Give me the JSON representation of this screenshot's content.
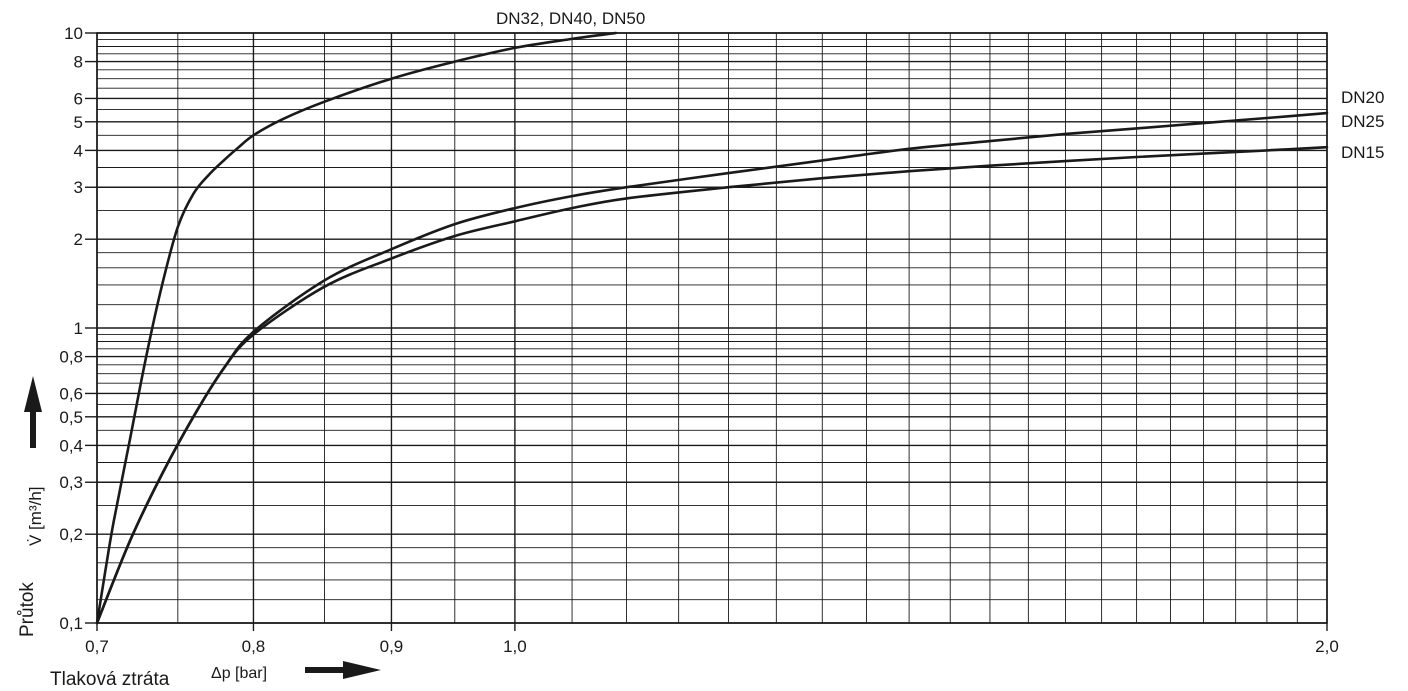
{
  "chart_data": {
    "type": "line",
    "title": "",
    "xlabel": "Tlaková ztráta",
    "xlabel_symbol": "Δp [bar]",
    "ylabel": "Průtok",
    "ylabel_symbol": "V̇ [m³/h]",
    "x_scale": "log",
    "y_scale": "log",
    "xlim": [
      0.7,
      2.0
    ],
    "ylim": [
      0.1,
      10
    ],
    "grid": true,
    "x_ticks": [
      {
        "value": 0.7,
        "label": "0,7"
      },
      {
        "value": 0.8,
        "label": "0,8"
      },
      {
        "value": 0.9,
        "label": "0,9"
      },
      {
        "value": 1.0,
        "label": "1,0"
      },
      {
        "value": 2.0,
        "label": "2,0"
      }
    ],
    "y_ticks": [
      {
        "value": 0.1,
        "label": "0,1"
      },
      {
        "value": 0.2,
        "label": "0,2"
      },
      {
        "value": 0.3,
        "label": "0,3"
      },
      {
        "value": 0.4,
        "label": "0,4"
      },
      {
        "value": 0.5,
        "label": "0,5"
      },
      {
        "value": 0.6,
        "label": "0,6"
      },
      {
        "value": 0.8,
        "label": "0,8"
      },
      {
        "value": 1,
        "label": "1"
      },
      {
        "value": 2,
        "label": "2"
      },
      {
        "value": 3,
        "label": "3"
      },
      {
        "value": 4,
        "label": "4"
      },
      {
        "value": 5,
        "label": "5"
      },
      {
        "value": 6,
        "label": "6"
      },
      {
        "value": 8,
        "label": "8"
      },
      {
        "value": 10,
        "label": "10"
      }
    ],
    "series": [
      {
        "name": "DN32, DN40, DN50",
        "x": [
          0.7,
          0.705,
          0.71,
          0.72,
          0.73,
          0.74,
          0.75,
          0.76,
          0.77,
          0.78,
          0.79,
          0.8,
          0.82,
          0.85,
          0.9,
          0.95,
          1.0,
          1.05,
          1.09
        ],
        "y": [
          0.1,
          0.15,
          0.22,
          0.42,
          0.8,
          1.4,
          2.2,
          2.85,
          3.3,
          3.7,
          4.1,
          4.5,
          5.1,
          5.85,
          7.0,
          8.0,
          8.9,
          9.55,
          10.0
        ]
      },
      {
        "name": "DN20",
        "x": [
          0.7,
          0.72,
          0.74,
          0.76,
          0.78,
          0.8,
          0.85,
          0.9,
          0.95,
          1.0,
          1.05,
          1.1,
          1.2,
          1.3,
          1.4,
          1.5,
          1.6,
          1.7,
          1.8,
          1.9,
          2.0
        ],
        "y": [
          0.1,
          0.19,
          0.32,
          0.5,
          0.73,
          0.97,
          1.45,
          1.85,
          2.25,
          2.55,
          2.8,
          3.0,
          3.35,
          3.7,
          4.05,
          4.3,
          4.55,
          4.75,
          4.95,
          5.15,
          5.35
        ]
      },
      {
        "name": "DN25",
        "x": [],
        "y": []
      },
      {
        "name": "DN15",
        "x": [
          0.7,
          0.72,
          0.74,
          0.76,
          0.78,
          0.8,
          0.85,
          0.9,
          0.95,
          1.0,
          1.05,
          1.1,
          1.2,
          1.3,
          1.4,
          1.5,
          1.6,
          1.7,
          1.8,
          1.9,
          2.0
        ],
        "y": [
          0.1,
          0.19,
          0.32,
          0.5,
          0.73,
          0.95,
          1.38,
          1.72,
          2.05,
          2.3,
          2.55,
          2.75,
          3.0,
          3.22,
          3.4,
          3.55,
          3.68,
          3.8,
          3.9,
          4.0,
          4.1
        ]
      }
    ]
  }
}
